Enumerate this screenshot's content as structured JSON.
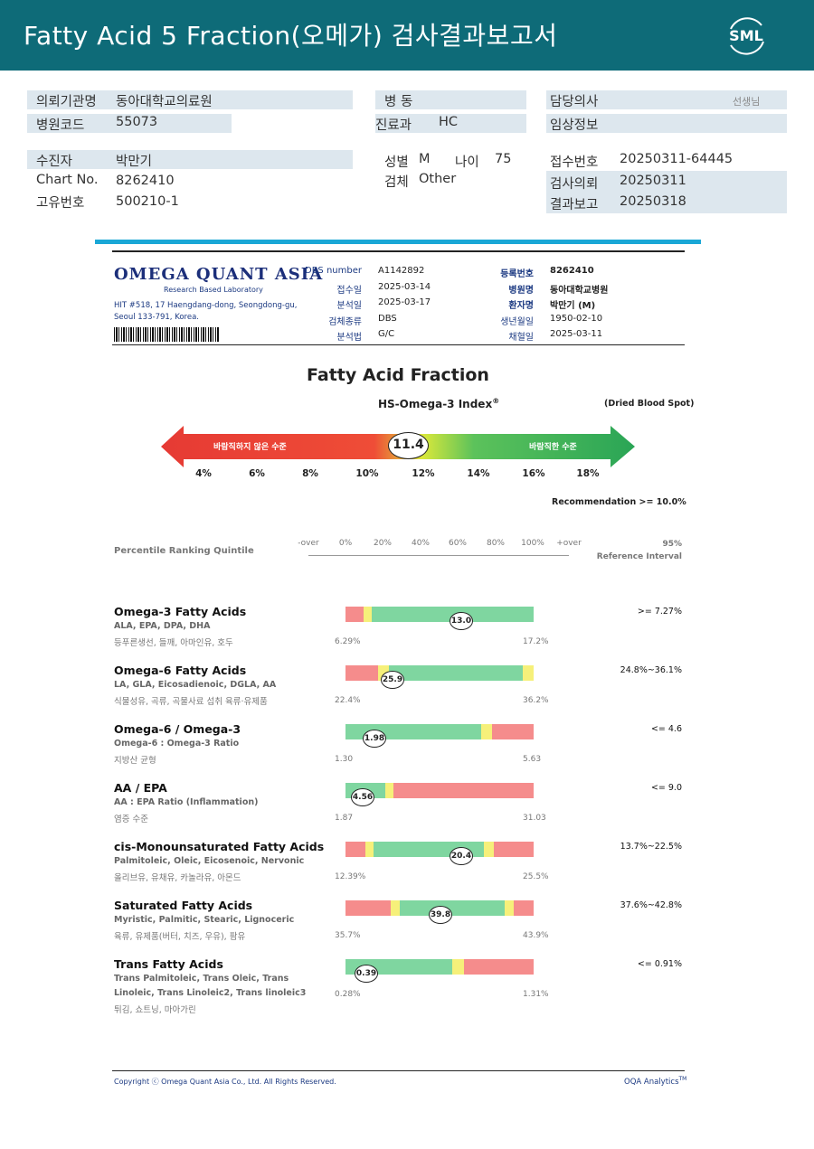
{
  "header": {
    "title": "Fatty Acid 5 Fraction(오메가) 검사결과보고서",
    "logo_text": "SML"
  },
  "patient_info": {
    "institution_label": "의뢰기관명",
    "institution": "동아대학교의료원",
    "hospital_code_label": "병원코드",
    "hospital_code": "55073",
    "ward_label": "병 동",
    "dept_label": "진료과",
    "dept": "HC",
    "doctor_label": "담당의사",
    "doctor_suffix": "선생님",
    "clinical_label": "임상정보",
    "patient_label": "수진자",
    "patient": "박만기",
    "chart_label": "Chart No.",
    "chart": "8262410",
    "unique_label": "고유번호",
    "unique": "500210-1",
    "sex_label": "성별",
    "sex": "M",
    "age_label": "나이",
    "age": "75",
    "specimen_label": "검체",
    "specimen": "Other",
    "receipt_label": "접수번호",
    "receipt": "20250311-64445",
    "request_label": "검사의뢰",
    "request": "20250311",
    "report_label": "결과보고",
    "report": "20250318"
  },
  "lab": {
    "logo": "OMEGA QUANT ASIA",
    "tagline": "Research Based Laboratory",
    "address1": "HIT #518, 17 Haengdang-dong, Seongdong-gu,",
    "address2": "Seoul 133-791, Korea."
  },
  "lab_meta_left": [
    {
      "label": "DBS number",
      "value": "A1142892"
    },
    {
      "label": "접수일",
      "value": "2025-03-14"
    },
    {
      "label": "분석일",
      "value": "2025-03-17"
    },
    {
      "label": "검체종류",
      "value": "DBS"
    },
    {
      "label": "분석법",
      "value": "G/C"
    }
  ],
  "lab_meta_right": [
    {
      "label": "등록번호",
      "value": "8262410"
    },
    {
      "label": "병원명",
      "value": "동아대학교병원"
    },
    {
      "label": "환자명",
      "value": "박만기 (M)"
    },
    {
      "label": "생년월일",
      "value": "1950-02-10"
    },
    {
      "label": "채혈일",
      "value": "2025-03-11"
    }
  ],
  "index": {
    "title": "Fatty Acid Fraction",
    "subtitle": "HS-Omega-3 Index",
    "sup": "®",
    "sample": "(Dried Blood Spot)",
    "value": "11.4",
    "bad_label": "바람직하지 않은 수준",
    "good_label": "바람직한 수준",
    "ticks": [
      "4%",
      "6%",
      "8%",
      "10%",
      "12%",
      "14%",
      "16%",
      "18%"
    ],
    "recommendation": "Recommendation  >= 10.0%"
  },
  "percentile": {
    "label": "Percentile Ranking Quintile",
    "ticks": [
      "-over",
      "0%",
      "20%",
      "40%",
      "60%",
      "80%",
      "100%",
      "+over"
    ],
    "ref_label1": "95%",
    "ref_label2": "Reference Interval"
  },
  "rows": [
    {
      "title": "Omega-3 Fatty Acids",
      "sub": "ALA, EPA, DPA, DHA",
      "sub2": "등푸른생선, 들깨, 아마인유, 호두",
      "min": "6.29%",
      "max": "17.2%",
      "value": "13.0",
      "ref": ">= 7.27%"
    },
    {
      "title": "Omega-6 Fatty Acids",
      "sub": "LA, GLA, Eicosadienoic, DGLA, AA",
      "sub2": "식물성유, 곡류, 곡물사료 섭취 육류·유제품",
      "min": "22.4%",
      "max": "36.2%",
      "value": "25.9",
      "ref": "24.8%~36.1%"
    },
    {
      "title": "Omega-6 / Omega-3",
      "sub": "Omega-6 : Omega-3 Ratio",
      "sub2": "지방산 균형",
      "min": "1.30",
      "max": "5.63",
      "value": "1.98",
      "ref": "<= 4.6"
    },
    {
      "title": "AA / EPA",
      "sub": "AA : EPA Ratio (Inflammation)",
      "sub2": "염증 수준",
      "min": "1.87",
      "max": "31.03",
      "value": "4.56",
      "ref": "<= 9.0"
    },
    {
      "title": "cis-Monounsaturated Fatty Acids",
      "sub": "Palmitoleic, Oleic, Eicosenoic, Nervonic",
      "sub2": "올리브유, 유채유, 카놀라유, 아몬드",
      "min": "12.39%",
      "max": "25.5%",
      "value": "20.4",
      "ref": "13.7%~22.5%"
    },
    {
      "title": "Saturated Fatty Acids",
      "sub": "Myristic, Palmitic, Stearic, Lignoceric",
      "sub2": "육류, 유제품(버터, 치즈, 우유), 팜유",
      "min": "35.7%",
      "max": "43.9%",
      "value": "39.8",
      "ref": "37.6%~42.8%"
    },
    {
      "title": "Trans Fatty Acids",
      "sub": "Trans Palmitoleic, Trans Oleic, Trans",
      "sub2": "Linoleic, Trans Linoleic2, Trans linoleic3",
      "sub3": "튀김, 쇼트닝, 마아가린",
      "min": "0.28%",
      "max": "1.31%",
      "value": "0.39",
      "ref": "<= 0.91%"
    }
  ],
  "footer": {
    "copyright": "Copyright ⓒ Omega Quant Asia Co., Ltd.  All Rights Reserved.",
    "brand": "OQA Analytics",
    "brand_sup": "TM"
  }
}
